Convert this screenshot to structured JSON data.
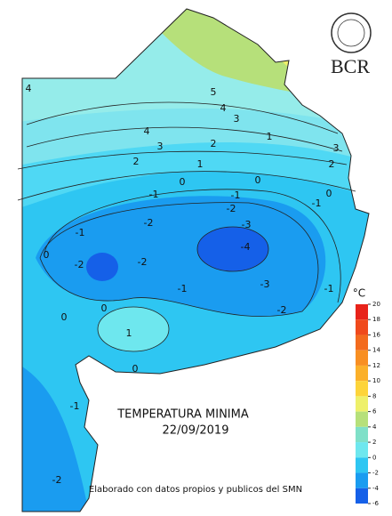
{
  "title": "TEMPERATURA MINIMA",
  "date": "22/09/2019",
  "footer": "Elaborado con datos propios y publicos del SMN",
  "logo": "BCR",
  "colorbar": {
    "unit": "°C",
    "ticks": [
      20,
      18,
      16,
      14,
      12,
      10,
      8,
      6,
      4,
      2,
      0,
      -2,
      -4,
      -6
    ],
    "colors": [
      "#e8231a",
      "#f04a1c",
      "#f36b1e",
      "#f88f22",
      "#fbb02a",
      "#fdd43a",
      "#eef06a",
      "#b6e07a",
      "#7fe0c8",
      "#6ee7ee",
      "#2ec6f2",
      "#1a9cf0",
      "#1560e8"
    ]
  },
  "contour_labels": [
    4,
    5,
    4,
    3,
    4,
    3,
    2,
    1,
    2,
    1,
    0,
    0,
    -1,
    -1,
    -1,
    -2,
    -3,
    -4,
    -2,
    -1,
    -2,
    -2,
    -3,
    -1,
    -2,
    0,
    1,
    0,
    0,
    -1,
    -2,
    0,
    3,
    2,
    0,
    -1
  ]
}
